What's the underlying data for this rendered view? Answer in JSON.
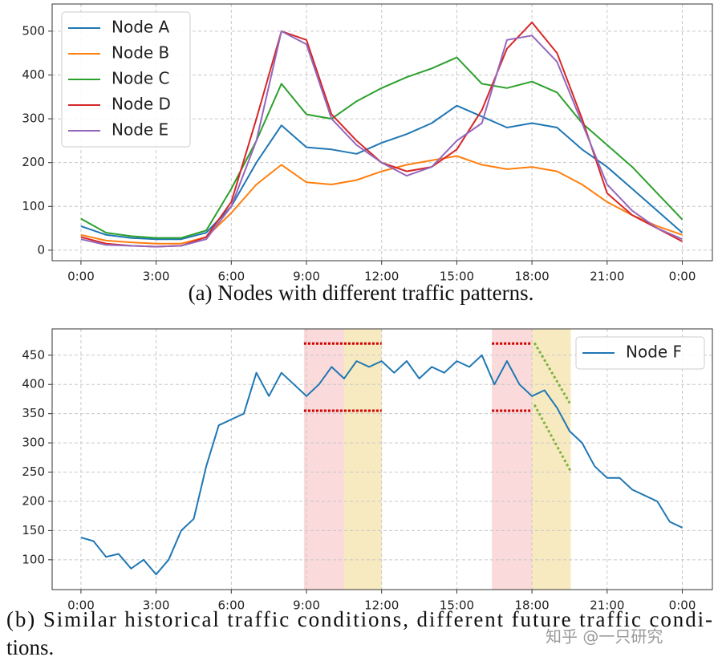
{
  "chart_data": [
    {
      "type": "line",
      "caption": [
        "(a) Nodes with different traffic patterns."
      ],
      "x": [
        0,
        1,
        2,
        3,
        4,
        5,
        6,
        7,
        8,
        9,
        10,
        11,
        12,
        13,
        14,
        15,
        16,
        17,
        18,
        19,
        20,
        21,
        22,
        23,
        24
      ],
      "series": [
        {
          "name": "Node A",
          "color": "#1f77b4",
          "values": [
            55,
            35,
            28,
            25,
            25,
            40,
            100,
            200,
            285,
            235,
            230,
            220,
            245,
            265,
            290,
            330,
            305,
            280,
            290,
            280,
            230,
            190,
            140,
            90,
            40
          ]
        },
        {
          "name": "Node B",
          "color": "#ff7f0e",
          "values": [
            35,
            22,
            18,
            15,
            15,
            30,
            85,
            150,
            195,
            155,
            150,
            160,
            180,
            195,
            205,
            215,
            195,
            185,
            190,
            180,
            150,
            110,
            80,
            55,
            35
          ]
        },
        {
          "name": "Node C",
          "color": "#2ca02c",
          "values": [
            72,
            40,
            32,
            28,
            28,
            45,
            140,
            250,
            380,
            310,
            300,
            340,
            370,
            395,
            415,
            440,
            380,
            370,
            385,
            360,
            290,
            240,
            190,
            130,
            70
          ]
        },
        {
          "name": "Node D",
          "color": "#d62728",
          "values": [
            30,
            15,
            10,
            8,
            10,
            30,
            110,
            300,
            500,
            480,
            310,
            250,
            200,
            180,
            190,
            230,
            320,
            460,
            520,
            450,
            300,
            130,
            80,
            50,
            20
          ]
        },
        {
          "name": "Node E",
          "color": "#9467bd",
          "values": [
            25,
            12,
            10,
            8,
            10,
            25,
            100,
            250,
            500,
            470,
            300,
            240,
            200,
            170,
            190,
            250,
            290,
            480,
            490,
            430,
            290,
            150,
            90,
            50,
            25
          ]
        }
      ],
      "xlim": [
        -1.15,
        25.2
      ],
      "ylim": [
        -24,
        562
      ],
      "xticks": [
        {
          "value": 0,
          "label": "0:00"
        },
        {
          "value": 3,
          "label": "3:00"
        },
        {
          "value": 6,
          "label": "6:00"
        },
        {
          "value": 9,
          "label": "9:00"
        },
        {
          "value": 12,
          "label": "12:00"
        },
        {
          "value": 15,
          "label": "15:00"
        },
        {
          "value": 18,
          "label": "18:00"
        },
        {
          "value": 21,
          "label": "21:00"
        },
        {
          "value": 24,
          "label": "0:00"
        }
      ],
      "yticks": [
        0,
        100,
        200,
        300,
        400,
        500
      ],
      "grid": true,
      "legend": "upper left"
    },
    {
      "type": "line",
      "caption": [
        "(b) Similar historical traffic conditions, different future traffic condi-",
        "tions."
      ],
      "x": [
        0,
        0.5,
        1,
        1.5,
        2,
        2.5,
        3,
        3.5,
        4,
        4.5,
        5,
        5.5,
        6,
        6.5,
        7,
        7.5,
        8,
        8.5,
        9,
        9.5,
        10,
        10.5,
        11,
        11.5,
        12,
        12.5,
        13,
        13.5,
        14,
        14.5,
        15,
        15.5,
        16,
        16.5,
        17,
        17.5,
        18,
        18.5,
        19,
        19.5,
        20,
        20.5,
        21,
        21.5,
        22,
        22.5,
        23,
        23.5,
        24
      ],
      "series": [
        {
          "name": "Node F",
          "color": "#1f77b4",
          "values": [
            138,
            132,
            105,
            110,
            85,
            100,
            75,
            100,
            150,
            170,
            260,
            330,
            340,
            350,
            420,
            380,
            420,
            400,
            380,
            400,
            430,
            410,
            440,
            430,
            440,
            420,
            440,
            410,
            430,
            420,
            440,
            430,
            450,
            400,
            440,
            400,
            380,
            390,
            360,
            320,
            300,
            260,
            240,
            240,
            220,
            210,
            200,
            165,
            155
          ]
        }
      ],
      "shaded_regions": [
        {
          "x0": 8.9,
          "x1": 10.5,
          "color": "#f9d4d4"
        },
        {
          "x0": 10.5,
          "x1": 12,
          "color": "#f7e6b5"
        },
        {
          "x0": 16.4,
          "x1": 18,
          "color": "#f9d4d4"
        },
        {
          "x0": 18,
          "x1": 19.55,
          "color": "#f7e6b5"
        }
      ],
      "hlines": [
        {
          "y": 470,
          "x0": 8.9,
          "x1": 12,
          "color": "#d00000"
        },
        {
          "y": 355,
          "x0": 8.9,
          "x1": 12,
          "color": "#d00000"
        },
        {
          "y": 470,
          "x0": 16.4,
          "x1": 18,
          "color": "#d00000"
        },
        {
          "y": 355,
          "x0": 16.4,
          "x1": 18,
          "color": "#d00000"
        }
      ],
      "trend_lines": [
        {
          "x": [
            18.1,
            19.55
          ],
          "y": [
            471,
            365
          ],
          "color": "#7cb342"
        },
        {
          "x": [
            18.1,
            19.55
          ],
          "y": [
            365,
            251
          ],
          "color": "#7cb342"
        }
      ],
      "xlim": [
        -1.15,
        25.2
      ],
      "ylim": [
        49,
        495
      ],
      "xticks": [
        {
          "value": 0,
          "label": "0:00"
        },
        {
          "value": 3,
          "label": "3:00"
        },
        {
          "value": 6,
          "label": "6:00"
        },
        {
          "value": 9,
          "label": "9:00"
        },
        {
          "value": 12,
          "label": "12:00"
        },
        {
          "value": 15,
          "label": "15:00"
        },
        {
          "value": 18,
          "label": "18:00"
        },
        {
          "value": 21,
          "label": "21:00"
        },
        {
          "value": 24,
          "label": "0:00"
        }
      ],
      "yticks": [
        100,
        150,
        200,
        250,
        300,
        350,
        400,
        450
      ],
      "grid": true,
      "legend": "upper right"
    }
  ],
  "watermark": "知乎 @一只研究"
}
